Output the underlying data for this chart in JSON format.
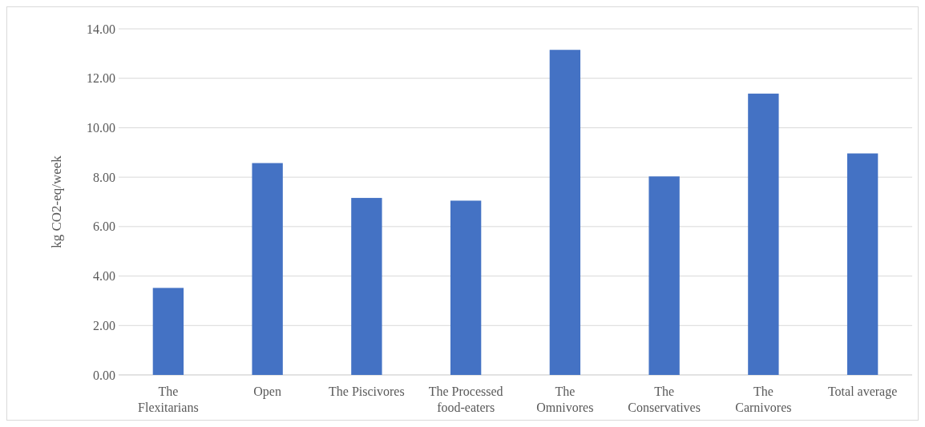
{
  "chart_data": {
    "type": "bar",
    "ylabel": "kg CO2-eq/week",
    "categories": [
      "The Flexitarians",
      "Open",
      "The Piscivores",
      "The Processed food-eaters",
      "The Omnivores",
      "The Conservatives",
      "The Carnivores",
      "Total average"
    ],
    "values": [
      3.52,
      8.57,
      7.16,
      7.05,
      13.15,
      8.03,
      11.38,
      8.96
    ],
    "color": "#4472c4",
    "ylim": [
      0,
      14
    ],
    "yticks": [
      {
        "value": 0,
        "label": "0.00"
      },
      {
        "value": 2,
        "label": "2.00"
      },
      {
        "value": 4,
        "label": "4.00"
      },
      {
        "value": 6,
        "label": "6.00"
      },
      {
        "value": 8,
        "label": "8.00"
      },
      {
        "value": 10,
        "label": "10.00"
      },
      {
        "value": 12,
        "label": "12.00"
      },
      {
        "value": 14,
        "label": "14.00"
      }
    ],
    "grid": "y"
  }
}
